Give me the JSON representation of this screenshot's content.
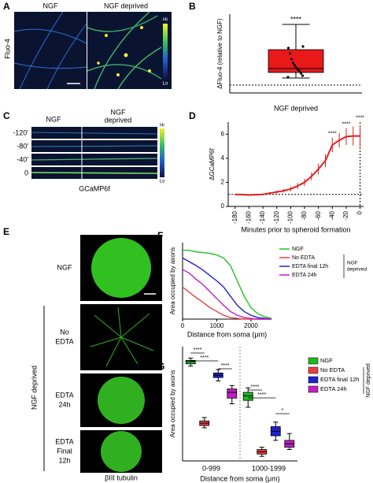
{
  "panels": {
    "A": {
      "label": "A",
      "left": "NGF",
      "right": "NGF deprived",
      "ylabel": "Fluo-4",
      "hi": "Hi",
      "lo": "Lo"
    },
    "C": {
      "label": "C",
      "left": "NGF",
      "right": [
        "NGF",
        "deprived"
      ],
      "rows": [
        "-120'",
        "-80'",
        "-40'",
        "0"
      ],
      "caption": "GCaMP6f",
      "hi": "Hi",
      "lo": "Lo"
    },
    "E": {
      "label": "E",
      "rows": [
        [
          "NGF"
        ],
        [
          "No",
          "EDTA"
        ],
        [
          "EDTA",
          "24h"
        ],
        [
          "EDTA",
          "Final",
          "12h"
        ]
      ],
      "group": "NGF deprived",
      "caption": "βIII tubulin"
    }
  },
  "chart_data": [
    {
      "panel": "B",
      "type": "box",
      "ylabel": "ΔFluo-4 (relative to NGF)",
      "xlabel": "NGF deprived",
      "ylim": [
        0,
        10
      ],
      "color": "#e8191a",
      "box": {
        "min": 1.9,
        "q1": 2.6,
        "median": 3.1,
        "q3": 5.5,
        "max": 8.7
      },
      "points": [
        2.0,
        2.2,
        2.5,
        2.8,
        3.0,
        3.2,
        3.5,
        3.8,
        4.3,
        5.0,
        5.7,
        5.9
      ],
      "reference": 1,
      "annotation": "****"
    },
    {
      "panel": "D",
      "type": "line",
      "ylabel": "ΔGCaMP6f",
      "xlabel": "Minutes prior to spheroid formation",
      "color": "#e02020",
      "x": [
        -180,
        -170,
        -160,
        -150,
        -140,
        -130,
        -120,
        -110,
        -100,
        -90,
        -80,
        -70,
        -60,
        -50,
        -40,
        -30,
        -20,
        -10,
        0
      ],
      "values": [
        1.0,
        0.98,
        0.95,
        0.97,
        1.0,
        1.1,
        1.2,
        1.3,
        1.45,
        1.7,
        2.0,
        2.5,
        3.1,
        3.8,
        5.1,
        5.5,
        5.8,
        5.85,
        5.85
      ],
      "errors": [
        0.05,
        0.05,
        0.05,
        0.05,
        0.08,
        0.1,
        0.12,
        0.15,
        0.2,
        0.25,
        0.3,
        0.35,
        0.45,
        0.55,
        0.6,
        0.6,
        0.7,
        0.8,
        0.9
      ],
      "xlim": [
        -190,
        5
      ],
      "xticks": [
        -180,
        -160,
        -140,
        -120,
        -100,
        -80,
        -60,
        -40,
        -20,
        0
      ],
      "ylim": [
        0,
        7
      ],
      "yticks": [
        0,
        2,
        4,
        6
      ],
      "hline": 1,
      "vline": 0,
      "annotations": [
        "****",
        "****",
        "****"
      ]
    },
    {
      "panel": "F",
      "type": "line",
      "ylabel": "Area occupied by axons",
      "xlabel": "Distance from soma (μm)",
      "x": [
        0,
        200,
        400,
        600,
        800,
        1000,
        1200,
        1400,
        1600,
        1800,
        2000,
        2200,
        2400,
        2600
      ],
      "xlim": [
        0,
        2600
      ],
      "xticks": [
        0,
        1000,
        2000
      ],
      "ylim": [
        0,
        1
      ],
      "series": [
        {
          "name": "NGF",
          "color": "#22c022",
          "values": [
            0.9,
            0.9,
            0.88,
            0.87,
            0.86,
            0.84,
            0.8,
            0.7,
            0.5,
            0.3,
            0.15,
            0.07,
            0.03,
            0.01
          ]
        },
        {
          "name": "No EDTA",
          "color": "#e84040",
          "values": [
            0.42,
            0.35,
            0.28,
            0.22,
            0.15,
            0.1,
            0.05,
            0.02,
            0.01,
            0,
            0,
            0,
            0,
            0
          ]
        },
        {
          "name": "EDTA final 12h",
          "color": "#2020d0",
          "values": [
            0.8,
            0.75,
            0.7,
            0.64,
            0.57,
            0.5,
            0.42,
            0.3,
            0.18,
            0.1,
            0.05,
            0.02,
            0.01,
            0
          ]
        },
        {
          "name": "EDTA 24h",
          "color": "#c020c0",
          "values": [
            0.65,
            0.6,
            0.52,
            0.45,
            0.36,
            0.27,
            0.18,
            0.1,
            0.05,
            0.02,
            0.01,
            0,
            0,
            0
          ]
        }
      ],
      "legend_group": [
        "NGF",
        "deprived"
      ]
    },
    {
      "panel": "G",
      "type": "box",
      "ylabel": "Area occupied by axons",
      "xlabel": "Distance from soma (μm)",
      "categories": [
        "0-999",
        "1000-1999"
      ],
      "ylim": [
        0,
        1
      ],
      "series": [
        {
          "name": "NGF",
          "color": "#22b822",
          "values": [
            {
              "min": 0.83,
              "q1": 0.85,
              "median": 0.87,
              "q3": 0.88,
              "max": 0.9
            },
            {
              "min": 0.47,
              "q1": 0.53,
              "median": 0.57,
              "q3": 0.6,
              "max": 0.64
            }
          ]
        },
        {
          "name": "No EDTA",
          "color": "#e84040",
          "values": [
            {
              "min": 0.29,
              "q1": 0.31,
              "median": 0.33,
              "q3": 0.35,
              "max": 0.38
            },
            {
              "min": 0.04,
              "q1": 0.06,
              "median": 0.08,
              "q3": 0.1,
              "max": 0.12
            }
          ]
        },
        {
          "name": "EDTA final 12h",
          "color": "#2020d0",
          "values": [
            {
              "min": 0.7,
              "q1": 0.73,
              "median": 0.75,
              "q3": 0.77,
              "max": 0.8
            },
            {
              "min": 0.18,
              "q1": 0.22,
              "median": 0.26,
              "q3": 0.3,
              "max": 0.34
            }
          ]
        },
        {
          "name": "EDTA 24h",
          "color": "#c020c0",
          "values": [
            {
              "min": 0.5,
              "q1": 0.55,
              "median": 0.6,
              "q3": 0.63,
              "max": 0.66
            },
            {
              "min": 0.1,
              "q1": 0.12,
              "median": 0.15,
              "q3": 0.18,
              "max": 0.24
            }
          ]
        }
      ],
      "annotations": [
        "****",
        "****",
        "****",
        "****",
        "****",
        "*"
      ],
      "legend_group": "NGF deprived"
    }
  ]
}
